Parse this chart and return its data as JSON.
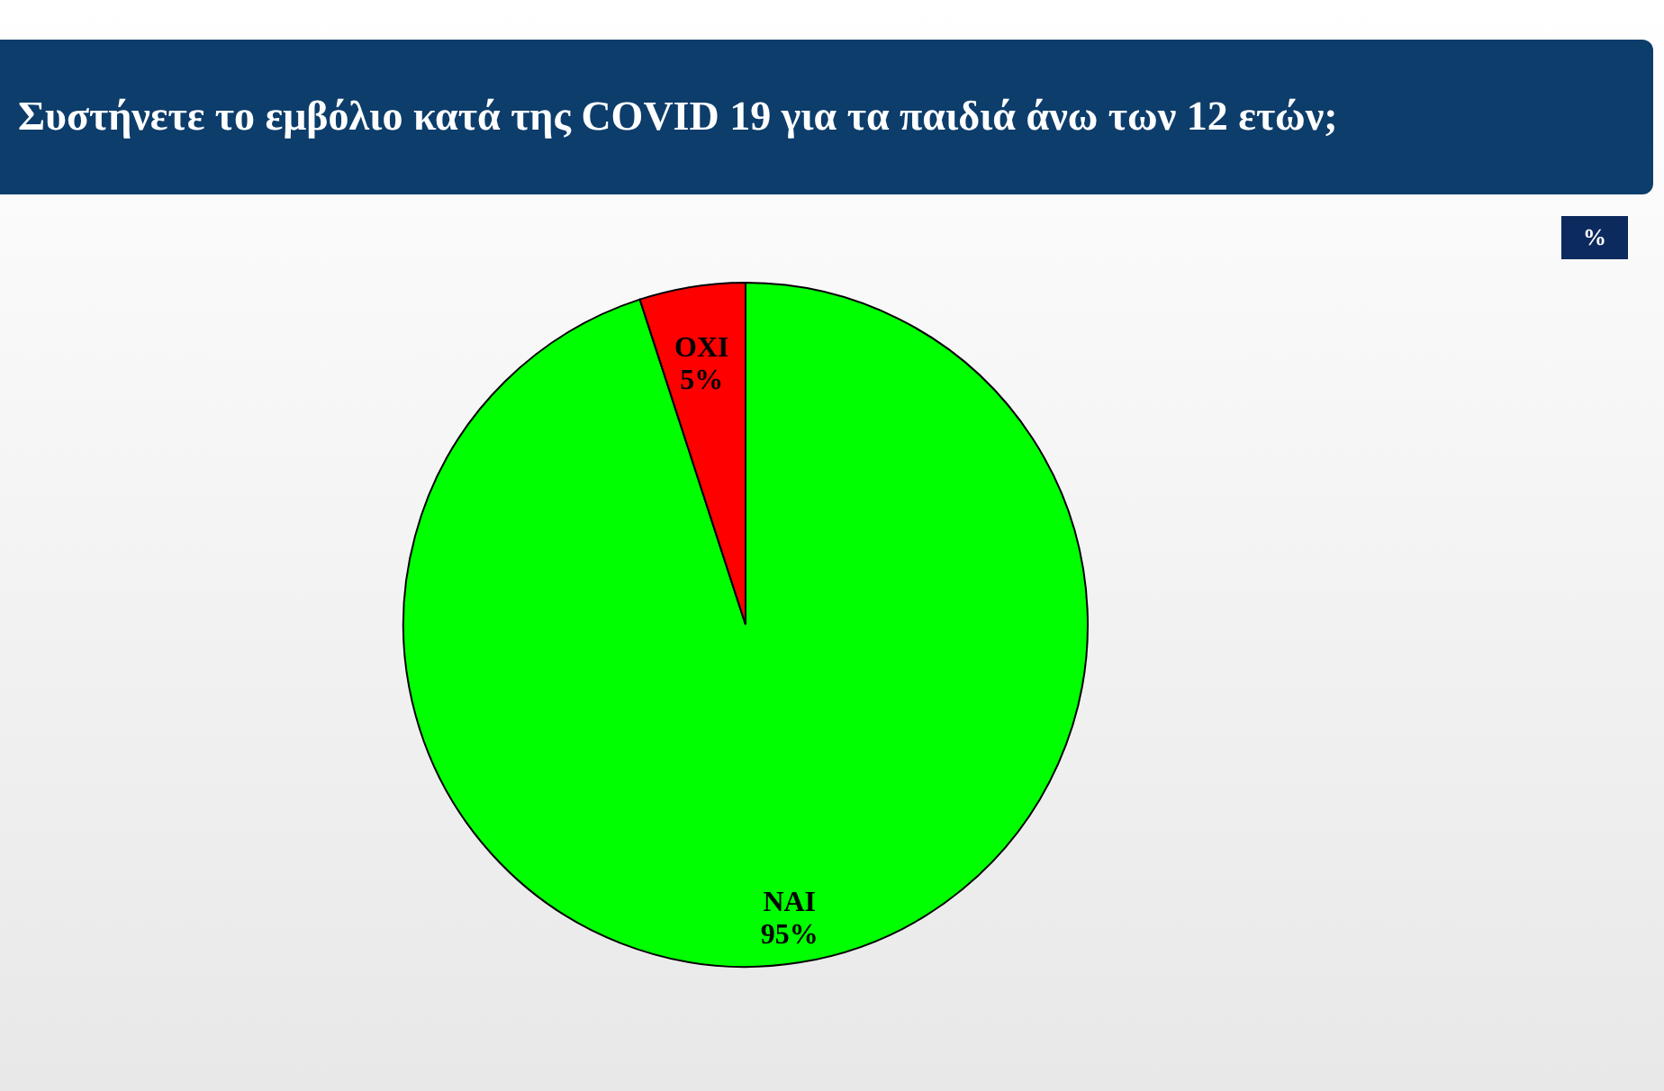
{
  "chart_data": {
    "type": "pie",
    "title": "Συστήνετε το εμβόλιο κατά της COVID 19 για τα παιδιά άνω των 12 ετών;",
    "annotations": [
      "%"
    ],
    "categories": [
      "ΝΑΙ",
      "ΟΧΙ"
    ],
    "values": [
      95,
      5
    ],
    "colors": [
      "#00ff00",
      "#ff0000"
    ],
    "value_labels": [
      "95%",
      "5%"
    ],
    "legend": false
  }
}
